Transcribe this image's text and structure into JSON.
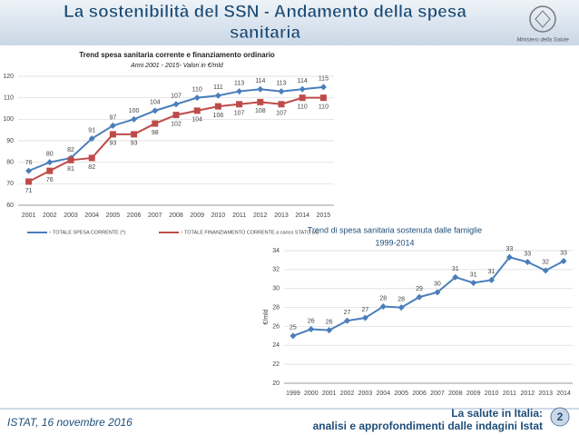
{
  "header": {
    "title": [
      "La sostenibilità del SSN - Andamento della spesa",
      "sanitaria"
    ],
    "emblem_caption": "Ministero della Salute"
  },
  "footer": {
    "left": "ISTAT, 16 novembre 2016",
    "right": [
      "La salute in Italia:",
      "analisi e approfondimenti dalle indagini Istat"
    ],
    "page": "2"
  },
  "chart_data": [
    {
      "type": "line",
      "title": "Trend spesa sanitaria corrente e finanziamento ordinario",
      "subtitle": "Anni 2001 - 2015- Valori in €/mld",
      "categories": [
        "2001",
        "2002",
        "2003",
        "2004",
        "2005",
        "2006",
        "2007",
        "2008",
        "2009",
        "2010",
        "2011",
        "2012",
        "2013",
        "2014",
        "2015"
      ],
      "series": [
        {
          "name": "TOTALE SPESA CORRENTE (*)",
          "color": "#4a7ebb",
          "marker": "diamond",
          "values": [
            76,
            80,
            82,
            91,
            97,
            100,
            104,
            107,
            110,
            111,
            113,
            114,
            113,
            114,
            115
          ]
        },
        {
          "name": "TOTALE FINANZIAMENTO CORRENTE a carico STATO (A)",
          "color": "#be4b48",
          "marker": "square",
          "values": [
            71,
            76,
            81,
            82,
            93,
            93,
            98,
            102,
            104,
            106,
            107,
            108,
            107,
            110,
            110
          ]
        }
      ],
      "ylim": [
        60,
        120
      ],
      "yticks": [
        60,
        70,
        80,
        90,
        100,
        110,
        120
      ],
      "grid": true,
      "legend": "bottom"
    },
    {
      "type": "line",
      "title": "Trend di spesa sanitaria sostenuta dalle famiglie",
      "subtitle": "1999-2014",
      "ylabel": "€/mld",
      "categories": [
        "1999",
        "2000",
        "2001",
        "2002",
        "2003",
        "2004",
        "2005",
        "2006",
        "2007",
        "2008",
        "2009",
        "2010",
        "2011",
        "2012",
        "2013",
        "2014"
      ],
      "series": [
        {
          "color": "#4a7ebb",
          "marker": "diamond",
          "values": [
            25.0,
            25.7,
            25.6,
            26.6,
            26.9,
            28.1,
            28.0,
            29.1,
            29.6,
            31.2,
            30.6,
            30.9,
            33.3,
            32.8,
            31.9,
            32.9
          ],
          "value_labels": [
            "25",
            "26",
            "26",
            "27",
            "27",
            "28",
            "28",
            "29",
            "30",
            "31",
            "31",
            "31",
            "33",
            "33",
            "32",
            "33"
          ]
        }
      ],
      "ylim": [
        20,
        34
      ],
      "yticks": [
        20,
        22,
        24,
        26,
        28,
        30,
        32,
        34
      ],
      "grid": true
    }
  ]
}
